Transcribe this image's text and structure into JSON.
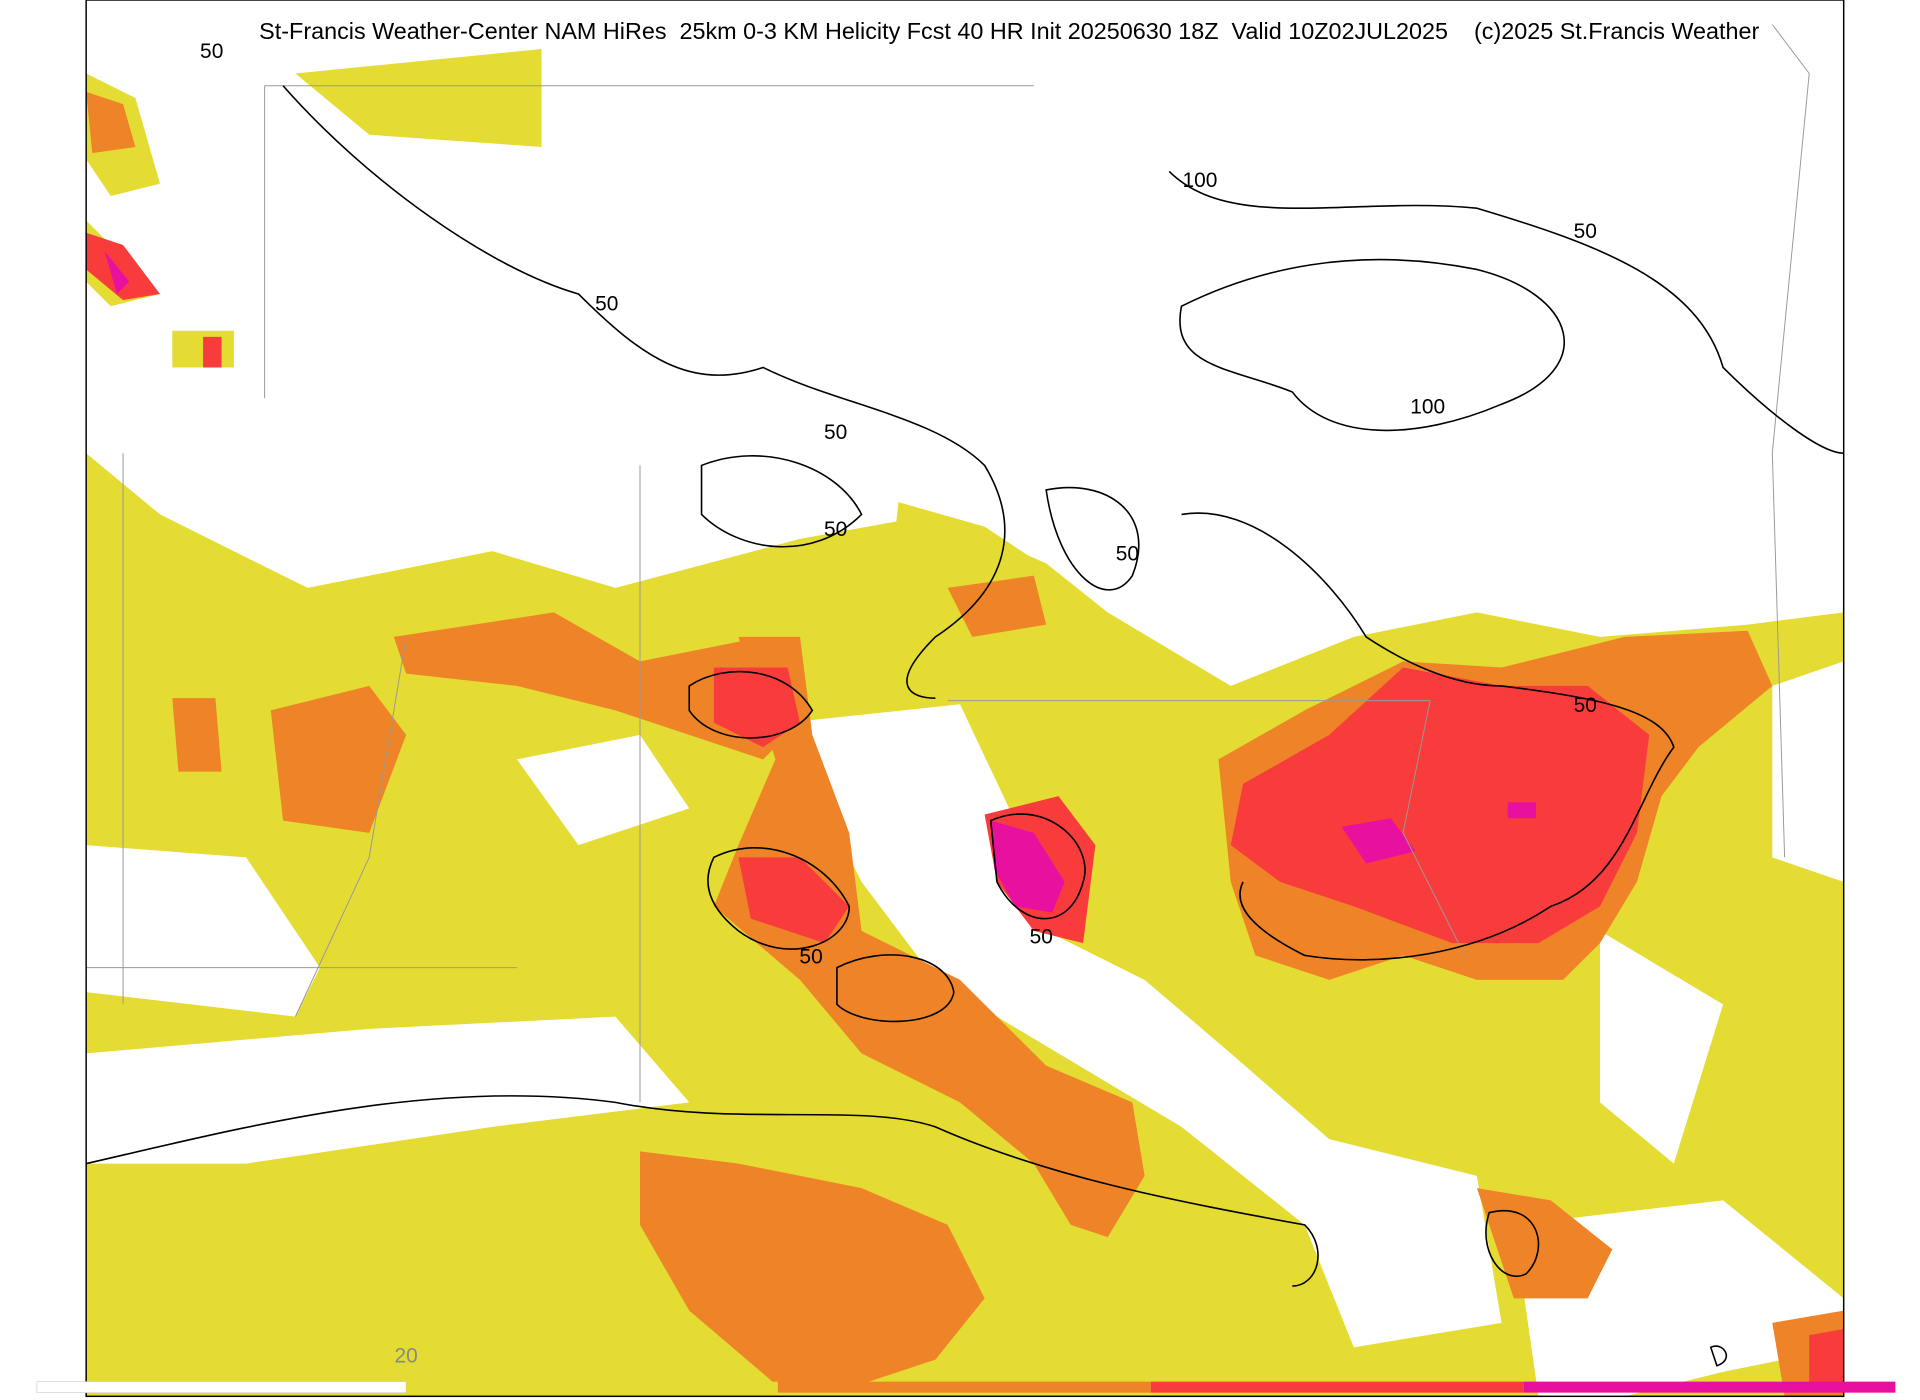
{
  "header": {
    "title": "St-Francis Weather-Center NAM HiRes  25km 0-3 KM Helicity Fcst 40 HR Init 20250630 18Z  Valid 10Z02JUL2025    (c)2025 St.Francis Weather"
  },
  "contour_labels": [
    "50",
    "100",
    "50",
    "50",
    "100",
    "50",
    "50",
    "50",
    "50",
    "50",
    "50"
  ],
  "colorbar": {
    "labels": [
      "20"
    ]
  }
}
